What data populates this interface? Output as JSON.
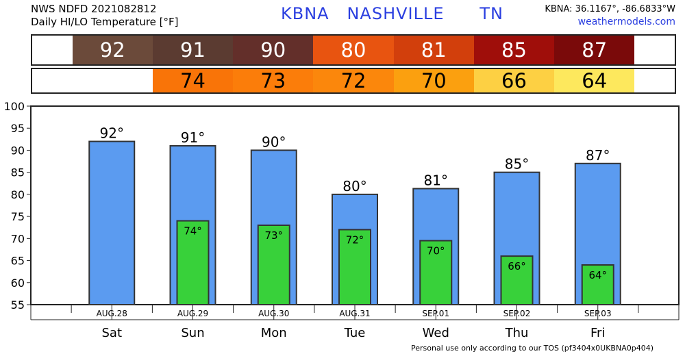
{
  "header": {
    "product": "NWS NDFD 2021082812",
    "subtitle": "Daily HI/LO Temperature [°F]",
    "station": "KBNA   NASHVILLE      TN",
    "coords": "KBNA: 36.1167°, -86.6833°W",
    "site": "weathermodels.com"
  },
  "footer": "Personal use only according to our TOS (pf3404x0UKBNA0p404)",
  "hi_strip": [
    {
      "value": "92",
      "color": "#6b4a3a",
      "text_color": "#ffffff"
    },
    {
      "value": "91",
      "color": "#5b3b31",
      "text_color": "#ffffff"
    },
    {
      "value": "90",
      "color": "#632f2a",
      "text_color": "#ffffff"
    },
    {
      "value": "80",
      "color": "#e85410",
      "text_color": "#ffffff"
    },
    {
      "value": "81",
      "color": "#d23f0c",
      "text_color": "#ffffff"
    },
    {
      "value": "85",
      "color": "#9f0e0a",
      "text_color": "#ffffff"
    },
    {
      "value": "87",
      "color": "#7a0a0a",
      "text_color": "#ffffff"
    }
  ],
  "lo_strip": [
    {
      "value": "",
      "color": "#ffffff",
      "text_color": "#000000"
    },
    {
      "value": "74",
      "color": "#f97408",
      "text_color": "#000000"
    },
    {
      "value": "73",
      "color": "#fb7d0a",
      "text_color": "#000000"
    },
    {
      "value": "72",
      "color": "#fb870c",
      "text_color": "#000000"
    },
    {
      "value": "70",
      "color": "#fba00f",
      "text_color": "#000000"
    },
    {
      "value": "66",
      "color": "#fdd043",
      "text_color": "#000000"
    },
    {
      "value": "64",
      "color": "#fde85d",
      "text_color": "#000000"
    }
  ],
  "chart_data": {
    "type": "bar",
    "categories": [
      "AUG.28",
      "AUG.29",
      "AUG.30",
      "AUG.31",
      "SEP.01",
      "SEP.02",
      "SEP.03"
    ],
    "days": [
      "Sat",
      "Sun",
      "Mon",
      "Tue",
      "Wed",
      "Thu",
      "Fri"
    ],
    "series": [
      {
        "name": "HI",
        "values": [
          92,
          91,
          90,
          80,
          81.3,
          85,
          87
        ],
        "labels": [
          "92°",
          "91°",
          "90°",
          "80°",
          "81°",
          "85°",
          "87°"
        ],
        "color": "#5b9bf0"
      },
      {
        "name": "LO",
        "values": [
          null,
          74,
          73,
          72,
          69.5,
          66,
          64
        ],
        "labels": [
          "",
          "74°",
          "73°",
          "72°",
          "70°",
          "66°",
          "64°"
        ],
        "color": "#38d13a"
      }
    ],
    "ylim": [
      55,
      100
    ],
    "yticks": [
      55,
      60,
      65,
      70,
      75,
      80,
      85,
      90,
      95,
      100
    ],
    "grid": false,
    "title": "",
    "xlabel": "",
    "ylabel": ""
  }
}
